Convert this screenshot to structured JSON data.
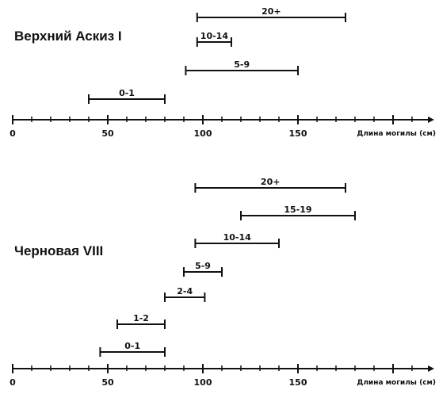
{
  "chart_data": [
    {
      "type": "range",
      "title": "Верхний Аскиз I",
      "xlabel": "Длина могилы (см)",
      "xlim": [
        0,
        220
      ],
      "x_ticks": [
        0,
        50,
        100,
        150
      ],
      "x_tick_labels": [
        "0",
        "50",
        "100",
        "150"
      ],
      "ranges": [
        {
          "label": "20+",
          "start": 97,
          "end": 175
        },
        {
          "label": "10-14",
          "start": 97,
          "end": 115
        },
        {
          "label": "5-9",
          "start": 91,
          "end": 150
        },
        {
          "label": "0-1",
          "start": 40,
          "end": 80
        }
      ]
    },
    {
      "type": "range",
      "title": "Черновая VIII",
      "xlabel": "Длина могилы (см)",
      "xlim": [
        0,
        220
      ],
      "x_ticks": [
        0,
        50,
        100,
        150
      ],
      "x_tick_labels": [
        "0",
        "50",
        "100",
        "150"
      ],
      "ranges": [
        {
          "label": "20+",
          "start": 96,
          "end": 175
        },
        {
          "label": "15-19",
          "start": 120,
          "end": 180
        },
        {
          "label": "10-14",
          "start": 96,
          "end": 140
        },
        {
          "label": "5-9",
          "start": 90,
          "end": 110
        },
        {
          "label": "2-4",
          "start": 80,
          "end": 101
        },
        {
          "label": "1-2",
          "start": 55,
          "end": 80
        },
        {
          "label": "0-1",
          "start": 46,
          "end": 80
        }
      ]
    }
  ]
}
